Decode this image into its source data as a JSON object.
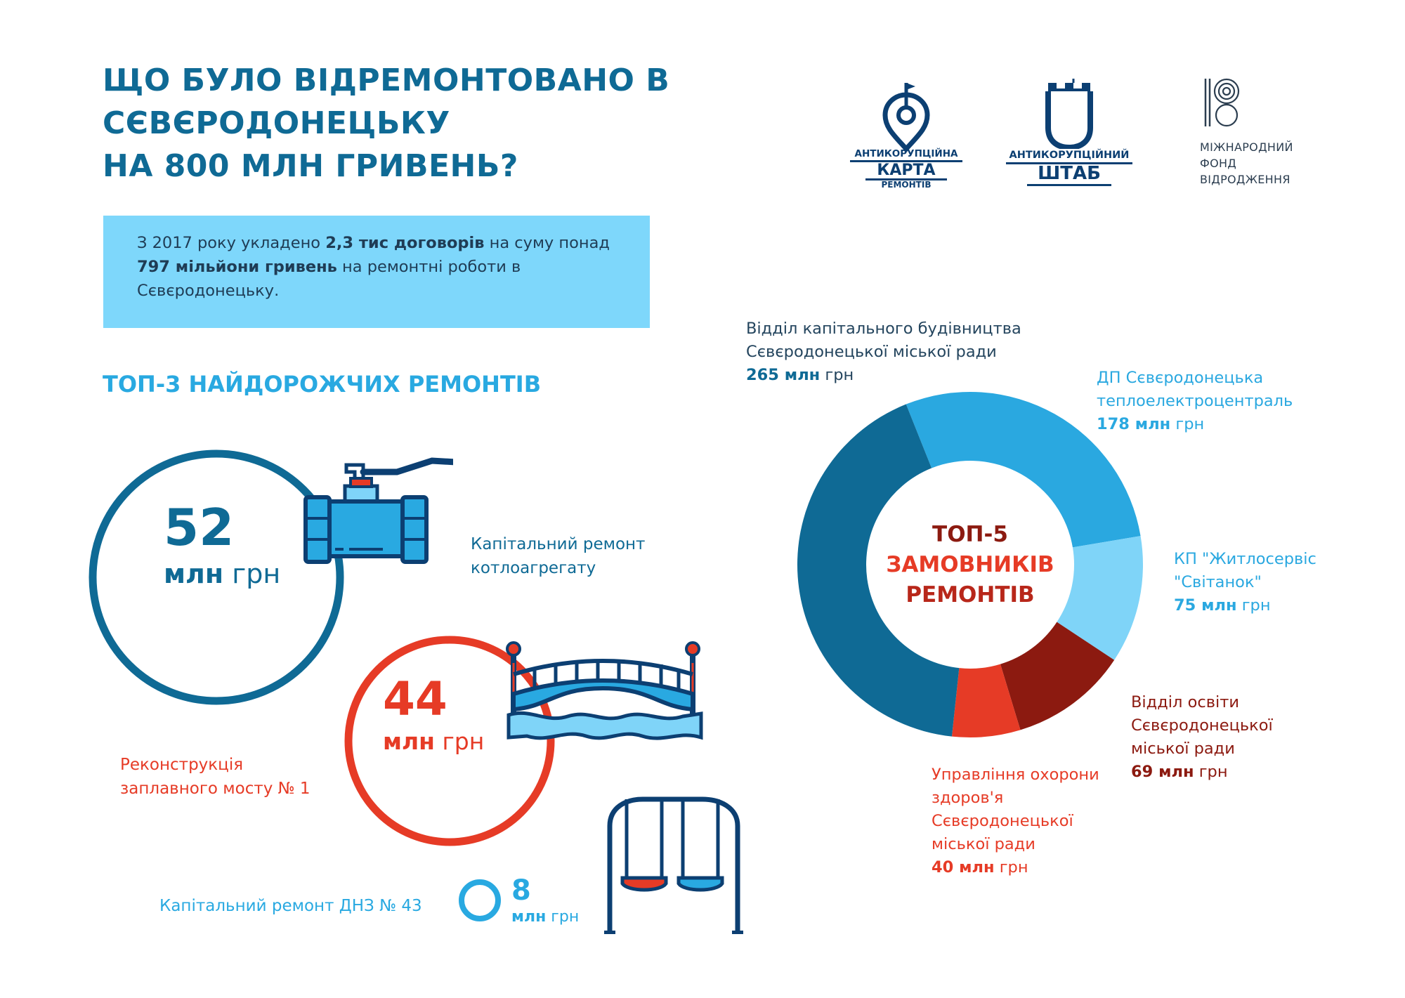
{
  "title_lines": [
    "ЩО БУЛО ВІДРЕМОНТОВАНО В",
    "СЄВЄРОДОНЕЦЬКУ",
    "НА 800 МЛН ГРИВЕНЬ?"
  ],
  "logos": {
    "karta": {
      "line1": "АНТИКОРУПЦІЙНА",
      "line2": "КАРТА",
      "line3": "РЕМОНТІВ"
    },
    "shtab": {
      "line1": "АНТИКОРУПЦІЙНИЙ",
      "line2": "ШТАБ"
    },
    "irf": {
      "line1": "МІЖНАРОДНИЙ",
      "line2": "ФОНД",
      "line3": "ВІДРОДЖЕННЯ"
    }
  },
  "summary": {
    "part1": "З 2017 року укладено ",
    "bold1": "2,3 тис договорів",
    "part2": " на суму понад",
    "bold2": "797 мільйони гривень",
    "part3": " на ремонтні роботи в",
    "part4": "Сєвєродонецьку."
  },
  "top3_title": "ТОП-3 НАЙДОРОЖЧИХ РЕМОНТІВ",
  "top3": [
    {
      "value": "52",
      "unit_bold": "млн",
      "unit_rest": " грн",
      "desc_lines": [
        "Капітальний ремонт",
        "котлоагрегату"
      ],
      "color": "#0f6a95",
      "icon": "valve-icon"
    },
    {
      "value": "44",
      "unit_bold": "млн",
      "unit_rest": " грн",
      "desc_lines": [
        "Реконструкція",
        "заплавного мосту № 1"
      ],
      "color": "#e63b26",
      "icon": "bridge-icon"
    },
    {
      "value": "8",
      "unit_bold": "млн",
      "unit_rest": " грн",
      "desc_lines": [
        "Капітальний ремонт ДНЗ № 43"
      ],
      "color": "#29a9e1",
      "icon": "swing-icon"
    }
  ],
  "donut_center": [
    "ТОП-5",
    "ЗАМОВНИКІВ",
    "РЕМОНТІВ"
  ],
  "chart_data": {
    "type": "pie",
    "title": "ТОП-5 ЗАМОВНИКІВ РЕМОНТІВ",
    "unit": "млн грн",
    "categories": [
      "Відділ капітального будівництва Сєвєродонецької міської ради",
      "ДП Сєвєродонецька теплоелектроцентраль",
      "КП \"Житлосервіс \"Світанок\"",
      "Відділ освіти Сєвєродонецької міської ради",
      "Управління охорони здоров'я Сєвєродонецької міської ради"
    ],
    "values": [
      265,
      178,
      75,
      69,
      40
    ],
    "colors": [
      "#0f6a95",
      "#2aa8e0",
      "#7fd4f8",
      "#8c1a10",
      "#e63b26"
    ],
    "labels": [
      {
        "lines": [
          "Відділ капітального будівництва",
          "Сєвєродонецької міської ради"
        ],
        "value_text": "265 млн",
        "unit_text": " грн"
      },
      {
        "lines": [
          "ДП Сєвєродонецька",
          "теплоелектроцентраль"
        ],
        "value_text": "178 млн",
        "unit_text": " грн"
      },
      {
        "lines": [
          "КП \"Житлосервіс",
          "\"Світанок\""
        ],
        "value_text": "75 млн",
        "unit_text": " грн"
      },
      {
        "lines": [
          "Відділ освіти",
          "Сєвєродонецької",
          "міської ради"
        ],
        "value_text": "69 млн",
        "unit_text": " грн"
      },
      {
        "lines": [
          "Управління охорони",
          "здоров'я",
          "Сєвєродонецької",
          "міської ради"
        ],
        "value_text": "40 млн",
        "unit_text": " грн"
      }
    ]
  }
}
